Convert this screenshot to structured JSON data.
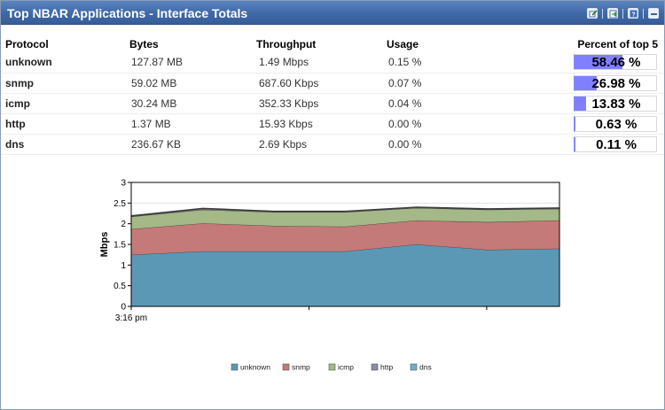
{
  "window": {
    "title": "Top NBAR Applications - Interface Totals",
    "tools": [
      "edit-icon",
      "export-icon",
      "help-icon",
      "minimize-icon"
    ]
  },
  "table": {
    "columns": [
      "Protocol",
      "Bytes",
      "Throughput",
      "Usage",
      "Percent of top 5"
    ],
    "rows": [
      {
        "protocol": "unknown",
        "bytes": "127.87 MB",
        "throughput": "1.49 Mbps",
        "usage": "0.15 %",
        "percent_label": "58.46 %",
        "percent": 58.46
      },
      {
        "protocol": "snmp",
        "bytes": "59.02 MB",
        "throughput": "687.60 Kbps",
        "usage": "0.07 %",
        "percent_label": "26.98 %",
        "percent": 26.98
      },
      {
        "protocol": "icmp",
        "bytes": "30.24 MB",
        "throughput": "352.33 Kbps",
        "usage": "0.04 %",
        "percent_label": "13.83 %",
        "percent": 13.83
      },
      {
        "protocol": "http",
        "bytes": "1.37 MB",
        "throughput": "15.93 Kbps",
        "usage": "0.00 %",
        "percent_label": "0.63 %",
        "percent": 0.63
      },
      {
        "protocol": "dns",
        "bytes": "236.67 KB",
        "throughput": "2.69 Kbps",
        "usage": "0.00 %",
        "percent_label": "0.11 %",
        "percent": 0.11
      }
    ],
    "bar_color": "#8080ff"
  },
  "chart_data": {
    "type": "area",
    "stacked": true,
    "ylabel": "Mbps",
    "xlabel": "",
    "ylim": [
      0,
      3
    ],
    "yticks": [
      "0",
      "0.5",
      "1",
      "1.5",
      "2",
      "2.5",
      "3"
    ],
    "xtick_label": "3:16 pm",
    "x": [
      0,
      1,
      2,
      3,
      4,
      5,
      6
    ],
    "series": [
      {
        "name": "unknown",
        "color": "#5b98b6",
        "values": [
          1.25,
          1.33,
          1.33,
          1.33,
          1.5,
          1.37,
          1.4
        ]
      },
      {
        "name": "snmp",
        "color": "#c47a78",
        "values": [
          0.62,
          0.68,
          0.62,
          0.6,
          0.58,
          0.67,
          0.68
        ]
      },
      {
        "name": "icmp",
        "color": "#a4b987",
        "values": [
          0.3,
          0.33,
          0.33,
          0.35,
          0.3,
          0.3,
          0.28
        ]
      },
      {
        "name": "http",
        "color": "#8a8ca6",
        "values": [
          0.02,
          0.03,
          0.02,
          0.02,
          0.02,
          0.02,
          0.02
        ]
      },
      {
        "name": "dns",
        "color": "#6fb0c8",
        "values": [
          0.0,
          0.0,
          0.0,
          0.0,
          0.0,
          0.0,
          0.0
        ]
      }
    ]
  }
}
